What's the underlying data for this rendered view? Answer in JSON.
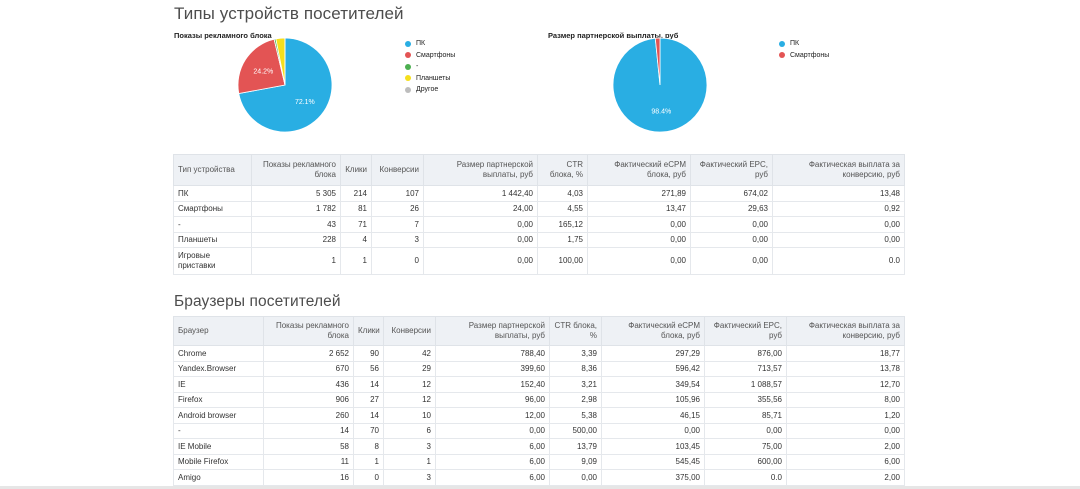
{
  "devices_section": {
    "title": "Типы устройств посетителей",
    "impressions_chart": {
      "title": "Показы рекламного блока",
      "legend": [
        "ПК",
        "Смартфоны",
        "-",
        "Планшеты",
        "Другое"
      ],
      "slice_labels": [
        "72.1%",
        "24.2%"
      ]
    },
    "payout_chart": {
      "title": "Размер партнерской выплаты, руб",
      "legend": [
        "ПК",
        "Смартфоны"
      ],
      "slice_labels": [
        "98.4%"
      ]
    },
    "table": {
      "headers": [
        "Тип устройства",
        "Показы рекламного блока",
        "Клики",
        "Конверсии",
        "Размер партнерской выплаты, руб",
        "CTR блока, %",
        "Фактический eCPM блока, руб",
        "Фактический EPC, руб",
        "Фактическая выплата за конверсию, руб"
      ],
      "rows": [
        [
          "ПК",
          "5 305",
          "214",
          "107",
          "1 442,40",
          "4,03",
          "271,89",
          "674,02",
          "13,48"
        ],
        [
          "Смартфоны",
          "1 782",
          "81",
          "26",
          "24,00",
          "4,55",
          "13,47",
          "29,63",
          "0,92"
        ],
        [
          "-",
          "43",
          "71",
          "7",
          "0,00",
          "165,12",
          "0,00",
          "0,00",
          "0,00"
        ],
        [
          "Планшеты",
          "228",
          "4",
          "3",
          "0,00",
          "1,75",
          "0,00",
          "0,00",
          "0,00"
        ],
        [
          "Игровые приставки",
          "1",
          "1",
          "0",
          "0,00",
          "100,00",
          "0,00",
          "0,00",
          "0.0"
        ]
      ]
    }
  },
  "browsers_section": {
    "title": "Браузеры посетителей",
    "table": {
      "headers": [
        "Браузер",
        "Показы рекламного блока",
        "Клики",
        "Конверсии",
        "Размер партнерской выплаты, руб",
        "CTR блока, %",
        "Фактический eCPM блока, руб",
        "Фактический EPC, руб",
        "Фактическая выплата за конверсию, руб"
      ],
      "rows": [
        [
          "Chrome",
          "2 652",
          "90",
          "42",
          "788,40",
          "3,39",
          "297,29",
          "876,00",
          "18,77"
        ],
        [
          "Yandex.Browser",
          "670",
          "56",
          "29",
          "399,60",
          "8,36",
          "596,42",
          "713,57",
          "13,78"
        ],
        [
          "IE",
          "436",
          "14",
          "12",
          "152,40",
          "3,21",
          "349,54",
          "1 088,57",
          "12,70"
        ],
        [
          "Firefox",
          "906",
          "27",
          "12",
          "96,00",
          "2,98",
          "105,96",
          "355,56",
          "8,00"
        ],
        [
          "Android browser",
          "260",
          "14",
          "10",
          "12,00",
          "5,38",
          "46,15",
          "85,71",
          "1,20"
        ],
        [
          "-",
          "14",
          "70",
          "6",
          "0,00",
          "500,00",
          "0,00",
          "0,00",
          "0,00"
        ],
        [
          "IE Mobile",
          "58",
          "8",
          "3",
          "6,00",
          "13,79",
          "103,45",
          "75,00",
          "2,00"
        ],
        [
          "Mobile Firefox",
          "11",
          "1",
          "1",
          "6,00",
          "9,09",
          "545,45",
          "600,00",
          "6,00"
        ],
        [
          "Amigo",
          "16",
          "0",
          "3",
          "6,00",
          "0,00",
          "375,00",
          "0.0",
          "2,00"
        ]
      ]
    }
  },
  "colors": {
    "pc": "#29aee3",
    "smartphones": "#e35454",
    "dash": "#4caf50",
    "tablets": "#f5df1d",
    "other": "#bdbdbd"
  },
  "chart_data": [
    {
      "type": "pie",
      "title": "Показы рекламного блока",
      "labels": [
        "ПК",
        "Смартфоны",
        "-",
        "Планшеты",
        "Другое"
      ],
      "values": [
        72.1,
        24.2,
        0.6,
        3.1,
        0.01
      ]
    },
    {
      "type": "pie",
      "title": "Размер партнерской выплаты, руб",
      "labels": [
        "ПК",
        "Смартфоны"
      ],
      "values": [
        98.4,
        1.6
      ]
    }
  ]
}
